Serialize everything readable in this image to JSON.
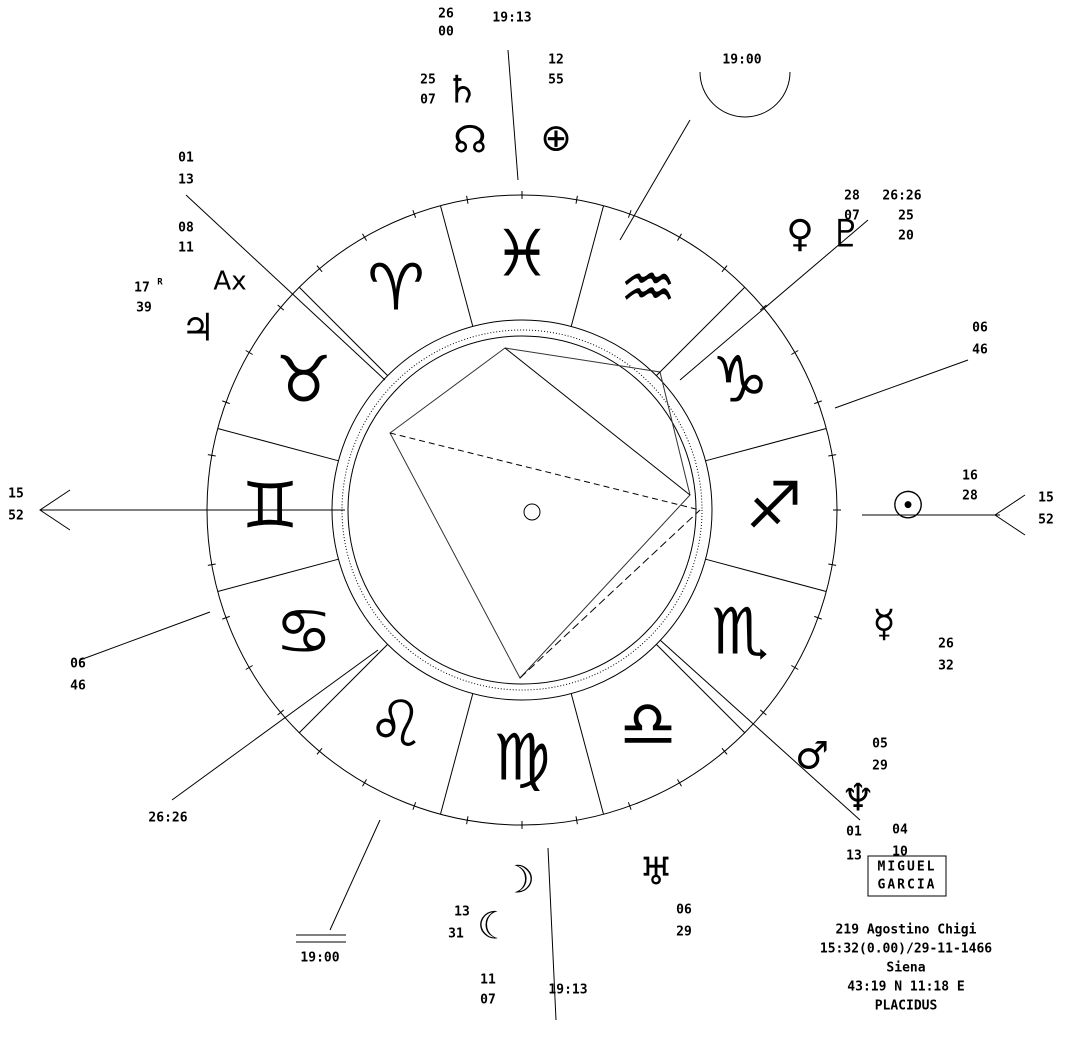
{
  "labels": [
    "26",
    "00",
    "19:13",
    "12",
    "55",
    "19:00",
    "25",
    "07",
    "01",
    "13",
    "08",
    "11",
    "17",
    "R",
    "39",
    "28",
    "07",
    "26:26",
    "25",
    "20",
    "06",
    "46",
    "16",
    "28",
    "15",
    "52",
    "15",
    "52",
    "26",
    "32",
    "06",
    "46",
    "05",
    "29",
    "01",
    "13",
    "04",
    "10",
    "26:26",
    "06",
    "29",
    "13",
    "31",
    "11",
    "07",
    "19:13",
    "19:00"
  ],
  "symbols": [
    "♄",
    "☊",
    "⊕",
    "Ax",
    "♃",
    "♀",
    "♇",
    "☉",
    "☿",
    "♂",
    "♆",
    "♅",
    "☽",
    "☾"
  ],
  "zodiac": [
    "♓",
    "♒",
    "♑",
    "♐",
    "♏",
    "♎",
    "♍",
    "♌",
    "♋",
    "♊",
    "♉",
    "♈"
  ],
  "signature": {
    "line1": "MIGUEL",
    "line2": "GARCIA"
  },
  "info": [
    "219 Agostino Chigi",
    "15:32(0.00)/29-11-1466",
    "Siena",
    "43:19 N  11:18 E",
    "PLACIDUS"
  ]
}
